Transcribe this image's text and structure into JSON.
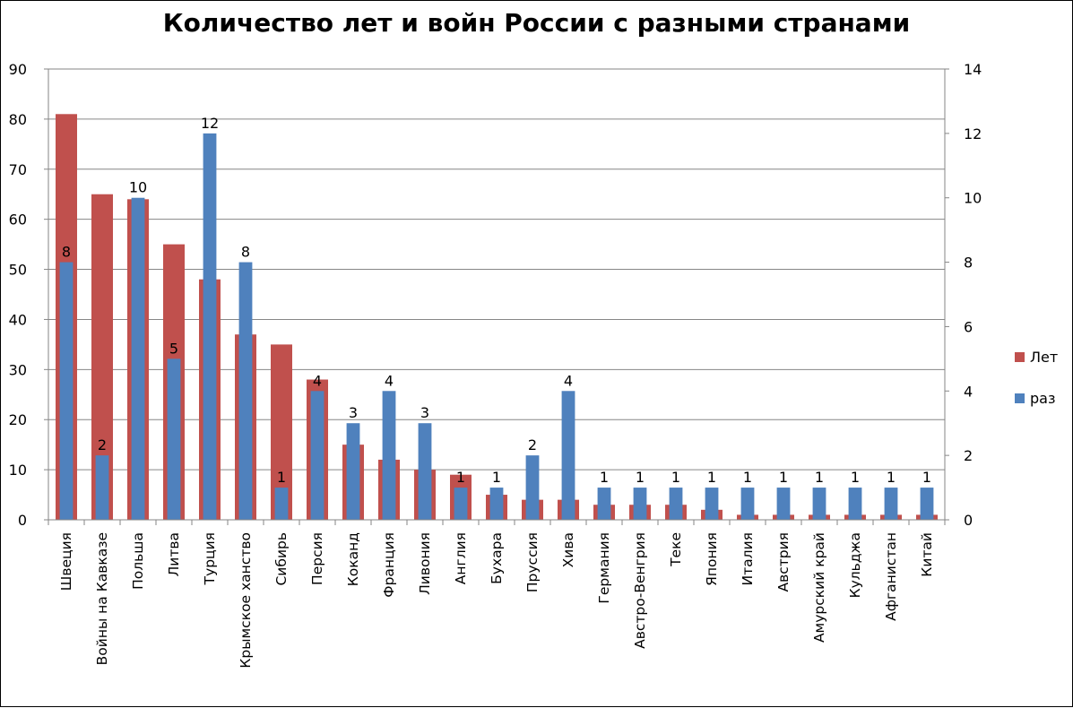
{
  "chart_data": {
    "type": "bar",
    "title": "Количество лет и войн России с разными странами",
    "categories": [
      "Швеция",
      "Войны на Кавказе",
      "Польша",
      "Литва",
      "Турция",
      "Крымское ханство",
      "Сибирь",
      "Персия",
      "Коканд",
      "Франция",
      "Ливония",
      "Англия",
      "Бухара",
      "Пруссия",
      "Хива",
      "Германия",
      "Австро-Венгрия",
      "Теке",
      "Япония",
      "Италия",
      "Австрия",
      "Амурский край",
      "Кульджа",
      "Афганистан",
      "Китай"
    ],
    "series": [
      {
        "name": "Лет",
        "axis": "left",
        "color": "#C0504D",
        "values": [
          81,
          65,
          64,
          55,
          48,
          37,
          35,
          28,
          15,
          12,
          10,
          9,
          5,
          4,
          4,
          3,
          3,
          3,
          2,
          1,
          1,
          1,
          1,
          1,
          1
        ]
      },
      {
        "name": "раз",
        "axis": "right",
        "color": "#4F81BD",
        "values": [
          8,
          2,
          10,
          5,
          12,
          8,
          1,
          4,
          3,
          4,
          3,
          1,
          1,
          2,
          4,
          1,
          1,
          1,
          1,
          1,
          1,
          1,
          1,
          1,
          1
        ],
        "data_labels": [
          8,
          2,
          10,
          5,
          12,
          8,
          1,
          4,
          3,
          4,
          3,
          1,
          1,
          2,
          4,
          1,
          1,
          1,
          1,
          1,
          1,
          1,
          1,
          1,
          1
        ]
      }
    ],
    "y_left": {
      "ylim": [
        0,
        90
      ],
      "ticks": [
        0,
        10,
        20,
        30,
        40,
        50,
        60,
        70,
        80,
        90
      ]
    },
    "y_right": {
      "ylim": [
        0,
        14
      ],
      "ticks": [
        0,
        2,
        4,
        6,
        8,
        10,
        12,
        14
      ]
    },
    "grid": true,
    "legend": "right"
  }
}
